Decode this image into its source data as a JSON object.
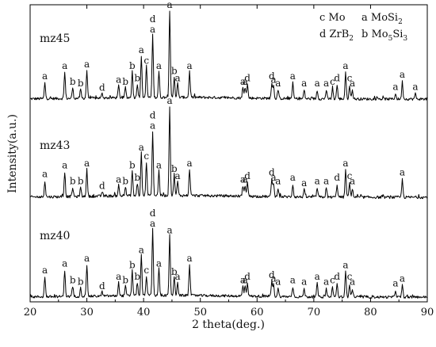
{
  "chart_data": {
    "type": "line",
    "xlabel": "2 theta(deg.)",
    "ylabel": "Intensity(a.u.)",
    "xlim": [
      20,
      90
    ],
    "xticks": [
      20,
      30,
      40,
      50,
      60,
      70,
      80,
      90
    ],
    "grid": false,
    "legend": {
      "placement": "top-right",
      "entries": [
        {
          "code": "c",
          "name": "Mo",
          "sub": ""
        },
        {
          "code": "a",
          "name": "MoSi",
          "sub": "2"
        },
        {
          "code": "d",
          "name": "ZrB",
          "sub": "2"
        },
        {
          "code": "b",
          "name": "Mo",
          "sub": "5",
          "tail": "Si",
          "sub2": "3"
        }
      ]
    },
    "series": [
      {
        "name": "mz45",
        "peaks": [
          {
            "x": 22.6,
            "h": 0.18,
            "labels": [
              "a"
            ]
          },
          {
            "x": 26.1,
            "h": 0.3,
            "labels": [
              "a"
            ]
          },
          {
            "x": 27.5,
            "h": 0.12,
            "labels": [
              "b"
            ]
          },
          {
            "x": 28.9,
            "h": 0.1,
            "labels": [
              "b"
            ]
          },
          {
            "x": 30.0,
            "h": 0.32,
            "labels": [
              "a"
            ]
          },
          {
            "x": 32.7,
            "h": 0.05,
            "labels": [
              "d"
            ]
          },
          {
            "x": 35.6,
            "h": 0.14,
            "labels": [
              "a"
            ]
          },
          {
            "x": 36.8,
            "h": 0.12,
            "labels": [
              "b"
            ]
          },
          {
            "x": 38.0,
            "h": 0.3,
            "labels": [
              "b"
            ]
          },
          {
            "x": 38.9,
            "h": 0.16,
            "labels": [
              "b"
            ]
          },
          {
            "x": 39.6,
            "h": 0.48,
            "labels": [
              "a"
            ]
          },
          {
            "x": 40.5,
            "h": 0.36,
            "labels": [
              "c"
            ]
          },
          {
            "x": 41.6,
            "h": 0.72,
            "labels": [
              "d",
              "a"
            ]
          },
          {
            "x": 42.7,
            "h": 0.3,
            "labels": [
              "a"
            ]
          },
          {
            "x": 44.6,
            "h": 1.0,
            "labels": [
              "a"
            ]
          },
          {
            "x": 45.4,
            "h": 0.24,
            "labels": [
              "b"
            ]
          },
          {
            "x": 46.0,
            "h": 0.16,
            "labels": [
              "a"
            ]
          },
          {
            "x": 48.1,
            "h": 0.3,
            "labels": [
              "a"
            ]
          },
          {
            "x": 57.5,
            "h": 0.12,
            "labels": [
              "a"
            ]
          },
          {
            "x": 57.9,
            "h": 0.12,
            "labels": [
              "a"
            ]
          },
          {
            "x": 58.3,
            "h": 0.16,
            "labels": [
              "d"
            ]
          },
          {
            "x": 62.6,
            "h": 0.18,
            "labels": [
              "d"
            ]
          },
          {
            "x": 62.9,
            "h": 0.14,
            "labels": [
              "a"
            ]
          },
          {
            "x": 63.7,
            "h": 0.1,
            "labels": [
              "a"
            ]
          },
          {
            "x": 66.3,
            "h": 0.18,
            "labels": [
              "a"
            ]
          },
          {
            "x": 68.3,
            "h": 0.1,
            "labels": [
              "a"
            ]
          },
          {
            "x": 70.6,
            "h": 0.1,
            "labels": [
              "a"
            ]
          },
          {
            "x": 72.2,
            "h": 0.1,
            "labels": [
              "a"
            ]
          },
          {
            "x": 73.3,
            "h": 0.12,
            "labels": [
              "c"
            ]
          },
          {
            "x": 74.1,
            "h": 0.16,
            "labels": [
              "d"
            ]
          },
          {
            "x": 75.6,
            "h": 0.3,
            "labels": [
              "a"
            ]
          },
          {
            "x": 76.3,
            "h": 0.16,
            "labels": [
              "c"
            ]
          },
          {
            "x": 76.8,
            "h": 0.1,
            "labels": [
              "a"
            ]
          },
          {
            "x": 84.4,
            "h": 0.06,
            "labels": [
              "a"
            ]
          },
          {
            "x": 85.6,
            "h": 0.2,
            "labels": [
              "a"
            ]
          },
          {
            "x": 87.9,
            "h": 0.06,
            "labels": [
              "a"
            ]
          }
        ]
      },
      {
        "name": "mz43",
        "peaks": [
          {
            "x": 22.6,
            "h": 0.18,
            "labels": [
              "a"
            ]
          },
          {
            "x": 26.1,
            "h": 0.28,
            "labels": [
              "a"
            ]
          },
          {
            "x": 27.5,
            "h": 0.1,
            "labels": [
              "b"
            ]
          },
          {
            "x": 28.9,
            "h": 0.1,
            "labels": [
              "b"
            ]
          },
          {
            "x": 30.0,
            "h": 0.3,
            "labels": [
              "a"
            ]
          },
          {
            "x": 32.7,
            "h": 0.05,
            "labels": [
              "d"
            ]
          },
          {
            "x": 35.6,
            "h": 0.12,
            "labels": [
              "a"
            ]
          },
          {
            "x": 36.8,
            "h": 0.1,
            "labels": [
              "b"
            ]
          },
          {
            "x": 38.0,
            "h": 0.28,
            "labels": [
              "b"
            ]
          },
          {
            "x": 38.9,
            "h": 0.14,
            "labels": [
              "b"
            ]
          },
          {
            "x": 39.6,
            "h": 0.48,
            "labels": [
              "a"
            ]
          },
          {
            "x": 40.5,
            "h": 0.38,
            "labels": [
              "c"
            ]
          },
          {
            "x": 41.6,
            "h": 0.72,
            "labels": [
              "d",
              "a"
            ]
          },
          {
            "x": 42.7,
            "h": 0.28,
            "labels": [
              "a"
            ]
          },
          {
            "x": 44.6,
            "h": 1.0,
            "labels": [
              "a"
            ]
          },
          {
            "x": 45.4,
            "h": 0.24,
            "labels": [
              "b"
            ]
          },
          {
            "x": 46.0,
            "h": 0.16,
            "labels": [
              "a"
            ]
          },
          {
            "x": 48.1,
            "h": 0.3,
            "labels": [
              "a"
            ]
          },
          {
            "x": 57.5,
            "h": 0.12,
            "labels": [
              "a"
            ]
          },
          {
            "x": 57.9,
            "h": 0.12,
            "labels": [
              "a"
            ]
          },
          {
            "x": 58.3,
            "h": 0.16,
            "labels": [
              "d"
            ]
          },
          {
            "x": 62.6,
            "h": 0.2,
            "labels": [
              "d"
            ]
          },
          {
            "x": 62.9,
            "h": 0.14,
            "labels": [
              "a"
            ]
          },
          {
            "x": 63.7,
            "h": 0.1,
            "labels": [
              "a"
            ]
          },
          {
            "x": 66.3,
            "h": 0.14,
            "labels": [
              "a"
            ]
          },
          {
            "x": 68.3,
            "h": 0.08,
            "labels": [
              "a"
            ]
          },
          {
            "x": 70.6,
            "h": 0.1,
            "labels": [
              "a"
            ]
          },
          {
            "x": 72.2,
            "h": 0.1,
            "labels": [
              "a"
            ]
          },
          {
            "x": 74.1,
            "h": 0.14,
            "labels": [
              "d"
            ]
          },
          {
            "x": 75.6,
            "h": 0.3,
            "labels": [
              "a"
            ]
          },
          {
            "x": 76.3,
            "h": 0.16,
            "labels": [
              "c"
            ]
          },
          {
            "x": 76.8,
            "h": 0.1,
            "labels": [
              "a"
            ]
          },
          {
            "x": 85.6,
            "h": 0.2,
            "labels": [
              "a"
            ]
          }
        ]
      },
      {
        "name": "mz40",
        "peaks": [
          {
            "x": 22.6,
            "h": 0.24,
            "labels": [
              "a"
            ]
          },
          {
            "x": 26.1,
            "h": 0.32,
            "labels": [
              "a"
            ]
          },
          {
            "x": 27.5,
            "h": 0.12,
            "labels": [
              "b"
            ]
          },
          {
            "x": 28.9,
            "h": 0.1,
            "labels": [
              "b"
            ]
          },
          {
            "x": 30.0,
            "h": 0.38,
            "labels": [
              "a"
            ]
          },
          {
            "x": 32.7,
            "h": 0.05,
            "labels": [
              "d"
            ]
          },
          {
            "x": 35.6,
            "h": 0.16,
            "labels": [
              "a"
            ]
          },
          {
            "x": 36.8,
            "h": 0.12,
            "labels": [
              "b"
            ]
          },
          {
            "x": 38.0,
            "h": 0.3,
            "labels": [
              "b"
            ]
          },
          {
            "x": 38.9,
            "h": 0.16,
            "labels": [
              "b"
            ]
          },
          {
            "x": 39.6,
            "h": 0.48,
            "labels": [
              "a"
            ]
          },
          {
            "x": 40.5,
            "h": 0.24,
            "labels": [
              "c"
            ]
          },
          {
            "x": 41.6,
            "h": 0.8,
            "labels": [
              "d",
              "a"
            ]
          },
          {
            "x": 42.7,
            "h": 0.32,
            "labels": [
              "a"
            ]
          },
          {
            "x": 44.6,
            "h": 0.72,
            "labels": [
              "a"
            ]
          },
          {
            "x": 45.4,
            "h": 0.22,
            "labels": [
              "b"
            ]
          },
          {
            "x": 46.0,
            "h": 0.16,
            "labels": [
              "a"
            ]
          },
          {
            "x": 48.1,
            "h": 0.38,
            "labels": [
              "a"
            ]
          },
          {
            "x": 57.5,
            "h": 0.12,
            "labels": [
              "a"
            ]
          },
          {
            "x": 57.9,
            "h": 0.12,
            "labels": [
              "a"
            ]
          },
          {
            "x": 58.3,
            "h": 0.16,
            "labels": [
              "d"
            ]
          },
          {
            "x": 62.6,
            "h": 0.18,
            "labels": [
              "d"
            ]
          },
          {
            "x": 62.9,
            "h": 0.14,
            "labels": [
              "a"
            ]
          },
          {
            "x": 63.7,
            "h": 0.1,
            "labels": [
              "a"
            ]
          },
          {
            "x": 66.3,
            "h": 0.12,
            "labels": [
              "a"
            ]
          },
          {
            "x": 68.3,
            "h": 0.1,
            "labels": [
              "a"
            ]
          },
          {
            "x": 70.6,
            "h": 0.16,
            "labels": [
              "a"
            ]
          },
          {
            "x": 72.2,
            "h": 0.1,
            "labels": [
              "a"
            ]
          },
          {
            "x": 73.3,
            "h": 0.12,
            "labels": [
              "c"
            ]
          },
          {
            "x": 74.1,
            "h": 0.16,
            "labels": [
              "d"
            ]
          },
          {
            "x": 75.6,
            "h": 0.3,
            "labels": [
              "a"
            ]
          },
          {
            "x": 76.3,
            "h": 0.16,
            "labels": [
              "c"
            ]
          },
          {
            "x": 76.8,
            "h": 0.1,
            "labels": [
              "a"
            ]
          },
          {
            "x": 84.4,
            "h": 0.08,
            "labels": [
              "a"
            ]
          },
          {
            "x": 85.6,
            "h": 0.14,
            "labels": [
              "a"
            ]
          }
        ]
      }
    ]
  }
}
